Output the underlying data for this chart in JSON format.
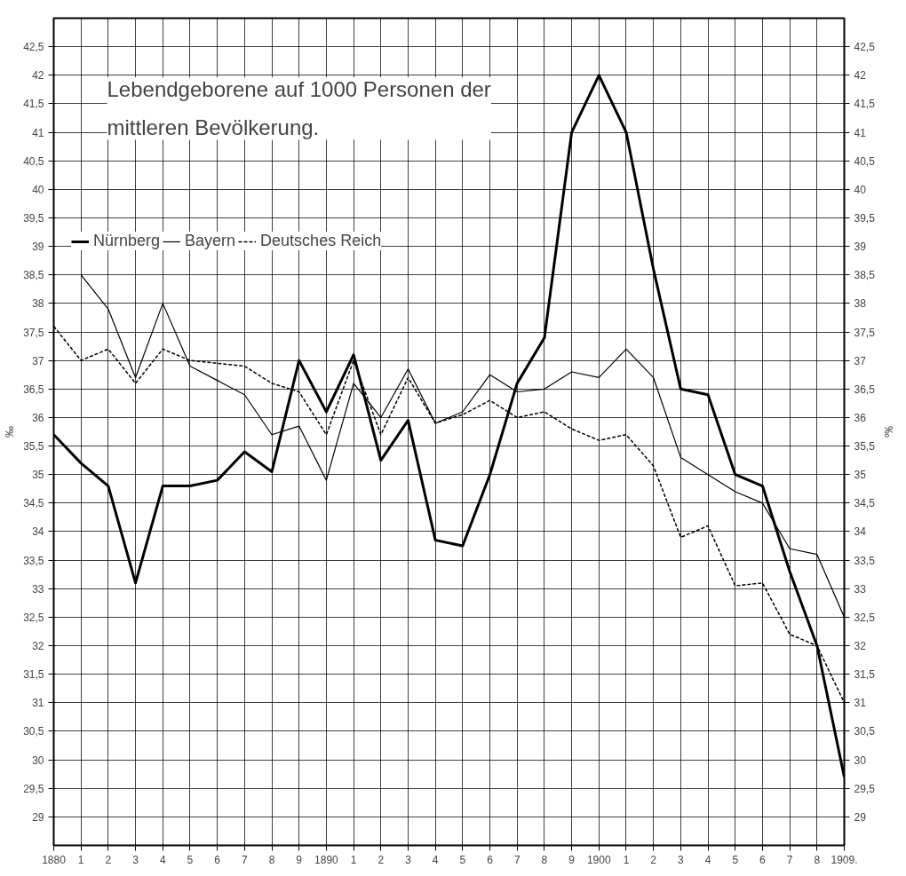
{
  "chart_data": {
    "type": "line",
    "title": "Lebendgeborene auf 1000 Personen der mittleren Bevölkerung.",
    "ylabel": "‰",
    "y2label": "‰",
    "categories": [
      "1880",
      "1",
      "2",
      "3",
      "4",
      "5",
      "6",
      "7",
      "8",
      "9",
      "1890",
      "1",
      "2",
      "3",
      "4",
      "5",
      "6",
      "7",
      "8",
      "9",
      "1900",
      "1",
      "2",
      "3",
      "4",
      "5",
      "6",
      "7",
      "8",
      "1909."
    ],
    "series": [
      {
        "name": "Nürnberg",
        "color": "#000000",
        "line_style": "solid",
        "values": [
          35.7,
          35.2,
          34.8,
          33.1,
          34.8,
          34.8,
          34.9,
          35.4,
          35.05,
          37.0,
          36.1,
          37.1,
          35.25,
          35.95,
          33.85,
          33.75,
          35.0,
          36.6,
          37.4,
          41.0,
          42.0,
          41.0,
          38.6,
          36.5,
          36.4,
          35.0,
          34.8,
          33.3,
          32.0,
          29.7
        ]
      },
      {
        "name": "Bayern",
        "color": "#000000",
        "line_style": "solid",
        "values": [
          null,
          38.5,
          37.9,
          36.7,
          38.0,
          36.9,
          36.65,
          36.4,
          35.7,
          35.85,
          34.9,
          36.6,
          36.0,
          36.85,
          35.9,
          36.1,
          36.75,
          36.45,
          36.5,
          36.8,
          36.7,
          37.2,
          36.7,
          35.3,
          35.0,
          34.7,
          34.5,
          33.7,
          33.6,
          32.5
        ]
      },
      {
        "name": "Deutsches Reich",
        "color": "#000000",
        "line_style": "dashed",
        "values": [
          37.6,
          37.0,
          37.2,
          36.6,
          37.2,
          37.0,
          36.95,
          36.9,
          36.6,
          36.45,
          35.7,
          37.0,
          35.7,
          36.7,
          35.9,
          36.05,
          36.3,
          36.0,
          36.1,
          35.8,
          35.6,
          35.7,
          35.15,
          33.9,
          34.1,
          33.05,
          33.1,
          32.2,
          32.0,
          31.0
        ]
      }
    ],
    "ylim": [
      28.5,
      43
    ],
    "yticks": [
      29,
      {
        "value": 29.5,
        "label": "29,5"
      },
      30,
      {
        "value": 30.5,
        "label": "30,5"
      },
      31,
      {
        "value": 31.5,
        "label": "31,5"
      },
      32,
      {
        "value": 32.5,
        "label": "32,5"
      },
      33,
      {
        "value": 33.5,
        "label": "33,5"
      },
      34,
      {
        "value": 34.5,
        "label": "34,5"
      },
      35,
      {
        "value": 35.5,
        "label": "35,5"
      },
      36,
      {
        "value": 36.5,
        "label": "36,5"
      },
      37,
      {
        "value": 37.5,
        "label": "37,5"
      },
      38,
      {
        "value": 38.5,
        "label": "38,5"
      },
      39,
      {
        "value": 39.5,
        "label": "39,5"
      },
      40,
      {
        "value": 40.5,
        "label": "40,5"
      },
      41,
      {
        "value": 41.5,
        "label": "41,5"
      },
      42,
      {
        "value": 42.5,
        "label": "42,5"
      }
    ],
    "y2lim": [
      28.5,
      43
    ],
    "y2ticks": [
      29,
      {
        "value": 29.5,
        "label": "29,5"
      },
      30,
      {
        "value": 30.5,
        "label": "30,5"
      },
      31,
      {
        "value": 31.5,
        "label": "31,5"
      },
      32,
      {
        "value": 32.5,
        "label": "32,5"
      },
      33,
      {
        "value": 33.5,
        "label": "33,5"
      },
      34,
      {
        "value": 34.5,
        "label": "34,5"
      },
      35,
      {
        "value": 35.5,
        "label": "35,5"
      },
      36,
      {
        "value": 36.5,
        "label": "36,5"
      },
      37,
      {
        "value": 37.5,
        "label": "37,5"
      },
      38,
      {
        "value": 38.5,
        "label": "38,5"
      },
      39,
      {
        "value": 39.5,
        "label": "39,5"
      },
      40,
      {
        "value": 40.5,
        "label": "40,5"
      },
      41,
      {
        "value": 41.5,
        "label": "41,5"
      },
      42,
      {
        "value": 42.5,
        "label": "42,5"
      }
    ],
    "grid": true,
    "legend": "top left",
    "marker": "none"
  }
}
